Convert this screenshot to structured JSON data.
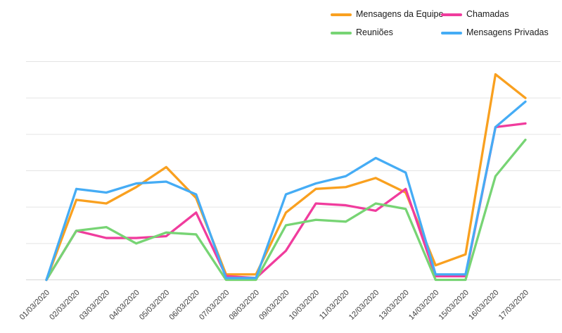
{
  "chart_data": {
    "type": "line",
    "title": "",
    "x_labels": [
      "01/03/2020",
      "02/03/2020",
      "03/03/2020",
      "04/03/2020",
      "05/03/2020",
      "06/03/2020",
      "07/03/2020",
      "08/03/2020",
      "09/03/2020",
      "10/03/2020",
      "11/03/2020",
      "12/03/2020",
      "13/03/2020",
      "14/03/2020",
      "15/03/2020",
      "16/03/2020",
      "17/03/2020"
    ],
    "ylim": [
      0,
      60
    ],
    "y_gridline_step": 10,
    "y_axis_labels_visible": false,
    "x_tick_rotation_deg": -45,
    "grid_on": true,
    "grid_color": "#e4e4e4",
    "axis_line_color": "#d7d7d7",
    "tick_label_color": "#3f3f3f",
    "legend": {
      "position": "top-right",
      "columns": 2,
      "items": [
        "Mensagens da Equipe",
        "Chamadas",
        "Reuniões",
        "Mensagens Privadas"
      ]
    },
    "series": [
      {
        "name": "Mensagens da Equipe",
        "color": "#f9a01f",
        "values": [
          0,
          22,
          21,
          25.5,
          31,
          22.5,
          1.5,
          1.5,
          18.5,
          25,
          25.5,
          28,
          24,
          4,
          7,
          56.5,
          50
        ]
      },
      {
        "name": "Chamadas",
        "color": "#f03c9d",
        "values": [
          0,
          13.5,
          11.5,
          11.5,
          12,
          18.5,
          1,
          0.5,
          8,
          21,
          20.5,
          19,
          25,
          1,
          1,
          42,
          43
        ]
      },
      {
        "name": "Reuniões",
        "color": "#77d474",
        "values": [
          0,
          13.5,
          14.5,
          10,
          13,
          12.5,
          0,
          0,
          15,
          16.5,
          16,
          21,
          19.5,
          0,
          0,
          28.5,
          38.5
        ]
      },
      {
        "name": "Mensagens Privadas",
        "color": "#45acf5",
        "values": [
          0,
          25,
          24,
          26.5,
          27,
          23.5,
          0.5,
          0.5,
          23.5,
          26.5,
          28.5,
          33.5,
          29.5,
          1.5,
          1.5,
          42,
          49
        ]
      }
    ]
  }
}
